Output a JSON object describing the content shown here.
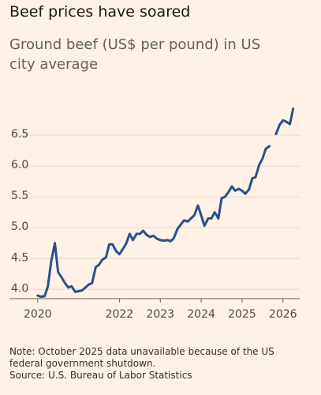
{
  "chart_data": {
    "type": "line",
    "title": "Beef prices have soared",
    "subtitle": "Ground beef (US$ per pound) in US city average",
    "note": "Note: October 2025 data unavailable because of the US federal government shutdown.",
    "source": "Source: U.S. Bureau of Labor Statistics",
    "x": [
      2020.0,
      2020.08,
      2020.17,
      2020.25,
      2020.33,
      2020.42,
      2020.5,
      2020.58,
      2020.67,
      2020.75,
      2020.83,
      2020.92,
      2021.0,
      2021.08,
      2021.17,
      2021.25,
      2021.33,
      2021.42,
      2021.5,
      2021.58,
      2021.67,
      2021.75,
      2021.83,
      2021.92,
      2022.0,
      2022.08,
      2022.17,
      2022.25,
      2022.33,
      2022.42,
      2022.5,
      2022.58,
      2022.67,
      2022.75,
      2022.83,
      2022.92,
      2023.0,
      2023.08,
      2023.17,
      2023.25,
      2023.33,
      2023.42,
      2023.5,
      2023.58,
      2023.67,
      2023.75,
      2023.83,
      2023.92,
      2024.0,
      2024.08,
      2024.17,
      2024.25,
      2024.33,
      2024.42,
      2024.5,
      2024.58,
      2024.67,
      2024.75,
      2024.83,
      2024.92,
      2025.0,
      2025.08,
      2025.17,
      2025.25,
      2025.33,
      2025.42,
      2025.5,
      2025.58,
      2025.67,
      2025.75,
      2025.83,
      2025.92,
      2026.0,
      2026.08,
      2026.17,
      2026.25
    ],
    "series": [
      {
        "name": "Ground beef",
        "color": "#28528c",
        "values": [
          3.9,
          3.88,
          3.89,
          4.05,
          4.45,
          4.75,
          4.28,
          4.2,
          4.1,
          4.03,
          4.05,
          3.96,
          3.97,
          3.98,
          4.03,
          4.08,
          4.1,
          4.36,
          4.4,
          4.48,
          4.52,
          4.73,
          4.73,
          4.62,
          4.57,
          4.65,
          4.75,
          4.9,
          4.8,
          4.9,
          4.9,
          4.95,
          4.88,
          4.85,
          4.87,
          4.82,
          4.8,
          4.79,
          4.8,
          4.78,
          4.83,
          4.98,
          5.05,
          5.12,
          5.1,
          5.15,
          5.2,
          5.36,
          5.2,
          5.03,
          5.15,
          5.15,
          5.25,
          5.15,
          5.48,
          5.5,
          5.58,
          5.67,
          5.6,
          5.63,
          5.6,
          5.55,
          5.62,
          5.8,
          5.82,
          6.02,
          6.12,
          6.28,
          6.32,
          null,
          6.52,
          6.67,
          6.74,
          6.72,
          6.68,
          6.93
        ]
      }
    ],
    "xlim": [
      2019.85,
      2026.41
    ],
    "xticks": [
      2020,
      2022,
      2023,
      2024,
      2025,
      2026
    ],
    "ylim": [
      3.85,
      6.95
    ],
    "yticks": [
      {
        "value": 4,
        "label": "4.0"
      },
      4.5,
      {
        "value": 5,
        "label": "5.0"
      },
      5.5,
      {
        "value": 6,
        "label": "6.0"
      },
      6.5
    ],
    "grid": true
  }
}
